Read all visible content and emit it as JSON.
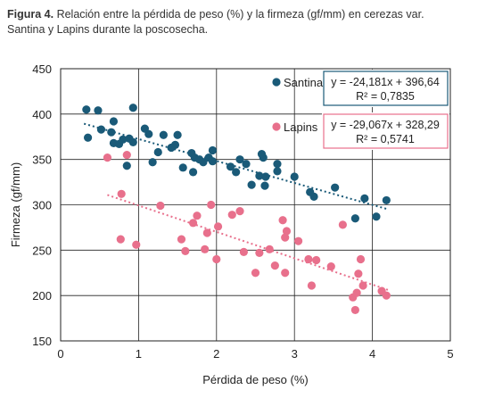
{
  "caption": {
    "label": "Figura 4.",
    "text_line1": " Relación entre la pérdida de peso (%) y la firmeza (gf/mm) en cerezas var.",
    "text_line2": "Santina y Lapins durante la poscosecha."
  },
  "chart_data": {
    "type": "scatter",
    "xlabel": "Pérdida de peso (%)",
    "ylabel": "Firmeza (gf/mm)",
    "xlim": [
      0,
      5
    ],
    "ylim": [
      150,
      450
    ],
    "xticks": [
      "0",
      "1",
      "2",
      "3",
      "4",
      "5"
    ],
    "yticks": [
      "150",
      "200",
      "250",
      "300",
      "350",
      "400",
      "450"
    ],
    "grid": true,
    "legend_position": "top-right",
    "series": [
      {
        "name": "Santina",
        "color": "#1a5a78",
        "trendline": {
          "slope": -24.181,
          "intercept": 396.64,
          "x_range": [
            0.3,
            4.2
          ]
        },
        "equation": "y = -24,181x + 396,64",
        "r2_label": "R² = 0,7835",
        "points": [
          [
            0.33,
            405
          ],
          [
            0.48,
            404
          ],
          [
            0.93,
            407
          ],
          [
            0.35,
            374
          ],
          [
            0.52,
            383
          ],
          [
            0.65,
            380
          ],
          [
            0.68,
            392
          ],
          [
            0.68,
            368
          ],
          [
            0.75,
            367
          ],
          [
            0.8,
            372
          ],
          [
            0.88,
            373
          ],
          [
            0.93,
            369
          ],
          [
            0.85,
            343
          ],
          [
            1.08,
            384
          ],
          [
            1.13,
            378
          ],
          [
            1.18,
            347
          ],
          [
            1.25,
            358
          ],
          [
            1.32,
            377
          ],
          [
            1.42,
            363
          ],
          [
            1.47,
            366
          ],
          [
            1.5,
            377
          ],
          [
            1.57,
            341
          ],
          [
            1.68,
            357
          ],
          [
            1.7,
            336
          ],
          [
            1.72,
            352
          ],
          [
            1.78,
            350
          ],
          [
            1.83,
            347
          ],
          [
            1.9,
            352
          ],
          [
            1.95,
            360
          ],
          [
            1.95,
            348
          ],
          [
            2.18,
            342
          ],
          [
            2.25,
            336
          ],
          [
            2.3,
            350
          ],
          [
            2.38,
            345
          ],
          [
            2.45,
            322
          ],
          [
            2.55,
            332
          ],
          [
            2.58,
            356
          ],
          [
            2.6,
            352
          ],
          [
            2.62,
            321
          ],
          [
            2.63,
            331
          ],
          [
            2.78,
            345
          ],
          [
            2.78,
            337
          ],
          [
            3.0,
            331
          ],
          [
            3.2,
            314
          ],
          [
            3.25,
            309
          ],
          [
            3.52,
            319
          ],
          [
            3.78,
            285
          ],
          [
            3.9,
            307
          ],
          [
            4.05,
            287
          ],
          [
            4.18,
            305
          ]
        ]
      },
      {
        "name": "Lapins",
        "color": "#e8708c",
        "trendline": {
          "slope": -29.067,
          "intercept": 328.29,
          "x_range": [
            0.6,
            4.2
          ]
        },
        "equation": "y = -29,067x + 328,29",
        "r2_label": "R² = 0,5741",
        "points": [
          [
            0.6,
            352
          ],
          [
            0.78,
            312
          ],
          [
            0.85,
            355
          ],
          [
            0.77,
            262
          ],
          [
            0.97,
            256
          ],
          [
            1.28,
            299
          ],
          [
            1.55,
            262
          ],
          [
            1.6,
            249
          ],
          [
            1.7,
            280
          ],
          [
            1.75,
            288
          ],
          [
            1.85,
            251
          ],
          [
            1.88,
            269
          ],
          [
            1.93,
            300
          ],
          [
            2.0,
            240
          ],
          [
            2.02,
            276
          ],
          [
            2.2,
            289
          ],
          [
            2.3,
            293
          ],
          [
            2.35,
            248
          ],
          [
            2.5,
            225
          ],
          [
            2.55,
            247
          ],
          [
            2.68,
            251
          ],
          [
            2.75,
            233
          ],
          [
            2.85,
            283
          ],
          [
            2.88,
            264
          ],
          [
            2.9,
            271
          ],
          [
            2.88,
            225
          ],
          [
            3.05,
            260
          ],
          [
            3.18,
            240
          ],
          [
            3.22,
            211
          ],
          [
            3.28,
            239
          ],
          [
            3.47,
            232
          ],
          [
            3.62,
            278
          ],
          [
            3.75,
            198
          ],
          [
            3.8,
            203
          ],
          [
            3.78,
            184
          ],
          [
            3.82,
            224
          ],
          [
            3.85,
            240
          ],
          [
            3.88,
            211
          ],
          [
            4.12,
            205
          ],
          [
            4.18,
            200
          ]
        ]
      }
    ]
  }
}
